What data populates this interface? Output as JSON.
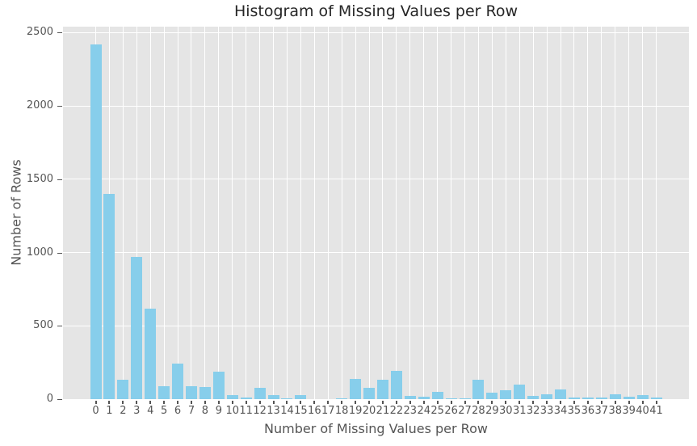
{
  "chart_data": {
    "type": "bar",
    "title": "Histogram of Missing Values per Row",
    "xlabel": "Number of Missing Values per Row",
    "ylabel": "Number of Rows",
    "categories": [
      "0",
      "1",
      "2",
      "3",
      "4",
      "5",
      "6",
      "7",
      "8",
      "9",
      "10",
      "11",
      "12",
      "13",
      "14",
      "15",
      "16",
      "17",
      "18",
      "19",
      "20",
      "21",
      "22",
      "23",
      "24",
      "25",
      "26",
      "27",
      "28",
      "29",
      "30",
      "31",
      "32",
      "33",
      "34",
      "35",
      "36",
      "37",
      "38",
      "39",
      "40",
      "41"
    ],
    "values": [
      2420,
      1400,
      130,
      970,
      615,
      90,
      240,
      90,
      85,
      190,
      30,
      13,
      75,
      30,
      8,
      25,
      0,
      0,
      5,
      140,
      80,
      135,
      195,
      20,
      15,
      48,
      5,
      5,
      130,
      45,
      60,
      100,
      20,
      35,
      65,
      12,
      10,
      12,
      35,
      18,
      30,
      10
    ],
    "yticks": [
      0,
      500,
      1000,
      1500,
      2000,
      2500
    ],
    "ytick_labels": [
      "0",
      "500",
      "1000",
      "1500",
      "2000",
      "2500"
    ],
    "ylim": [
      0,
      2541
    ],
    "grid": true,
    "legend": "none",
    "style": {
      "bar_color": "#87ceeb",
      "plot_background": "#e5e5e5",
      "grid_color": "#ffffff",
      "tick_color": "#555555",
      "axis_label_color": "#555555",
      "title_color": "#262626",
      "figure_background": "#ffffff"
    }
  }
}
